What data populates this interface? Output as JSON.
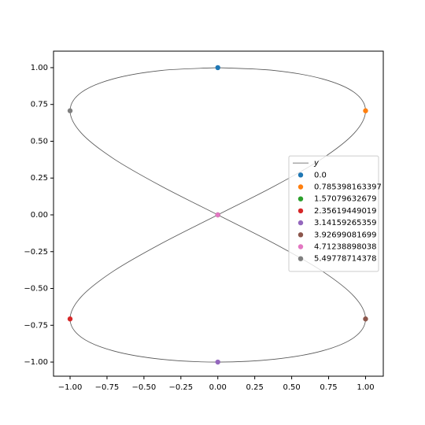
{
  "chart_data": {
    "type": "line",
    "xlim": [
      -1.112,
      1.12
    ],
    "ylim": [
      -1.096,
      1.112
    ],
    "xticks": [
      {
        "value": -1,
        "label": "−1.00"
      },
      {
        "value": -0.75,
        "label": "−0.75"
      },
      {
        "value": -0.5,
        "label": "−0.50"
      },
      {
        "value": -0.25,
        "label": "−0.25"
      },
      {
        "value": 0,
        "label": "0.00"
      },
      {
        "value": 0.25,
        "label": "0.25"
      },
      {
        "value": 0.5,
        "label": "0.50"
      },
      {
        "value": 0.75,
        "label": "0.75"
      },
      {
        "value": 1,
        "label": "1.00"
      }
    ],
    "yticks": [
      {
        "value": -1,
        "label": "−1.00"
      },
      {
        "value": -0.75,
        "label": "−0.75"
      },
      {
        "value": -0.5,
        "label": "−0.50"
      },
      {
        "value": -0.25,
        "label": "−0.25"
      },
      {
        "value": 0,
        "label": "0.00"
      },
      {
        "value": 0.25,
        "label": "0.25"
      },
      {
        "value": 0.5,
        "label": "0.50"
      },
      {
        "value": 0.75,
        "label": "0.75"
      },
      {
        "value": 1,
        "label": "1.00"
      }
    ],
    "legend": "center right",
    "series": [
      {
        "name": "y",
        "type": "line",
        "color": "#555555",
        "x": [
          0,
          0.3827,
          0.7071,
          0.9239,
          1,
          0.9239,
          0.7071,
          0.3827,
          0,
          -0.3827,
          -0.7071,
          -0.9239,
          -1,
          -0.9239,
          -0.7071,
          -0.3827,
          0,
          0.3827,
          0.7071,
          0.9239,
          1,
          0.9239,
          0.7071,
          0.3827,
          0,
          -0.3827,
          -0.7071,
          -0.9239,
          -1,
          -0.9239,
          -0.7071,
          -0.3827,
          0
        ],
        "y": [
          1,
          0.9808,
          0.9239,
          0.8315,
          0.7071,
          0.5556,
          0.3827,
          0.1951,
          0,
          -0.1951,
          -0.3827,
          -0.5556,
          -0.7071,
          -0.8315,
          -0.9239,
          -0.9808,
          -1,
          -0.9808,
          -0.9239,
          -0.8315,
          -0.7071,
          -0.5556,
          -0.3827,
          -0.1951,
          0,
          0.1951,
          0.3827,
          0.5556,
          0.7071,
          0.8315,
          0.9239,
          0.9808,
          1
        ]
      },
      {
        "name": "0.0",
        "type": "scatter",
        "color": "#1f77b4",
        "x": [
          0
        ],
        "y": [
          1
        ]
      },
      {
        "name": "0.785398163397",
        "type": "scatter",
        "color": "#ff7f0e",
        "x": [
          1
        ],
        "y": [
          0.7071
        ]
      },
      {
        "name": "1.57079632679",
        "type": "scatter",
        "color": "#2ca02c",
        "x": [
          0
        ],
        "y": [
          0
        ]
      },
      {
        "name": "2.35619449019",
        "type": "scatter",
        "color": "#d62728",
        "x": [
          -1
        ],
        "y": [
          -0.7071
        ]
      },
      {
        "name": "3.14159265359",
        "type": "scatter",
        "color": "#9467bd",
        "x": [
          0
        ],
        "y": [
          -1
        ]
      },
      {
        "name": "3.92699081699",
        "type": "scatter",
        "color": "#8c564b",
        "x": [
          1
        ],
        "y": [
          -0.7071
        ]
      },
      {
        "name": "4.71238898038",
        "type": "scatter",
        "color": "#e377c2",
        "x": [
          0
        ],
        "y": [
          0
        ]
      },
      {
        "name": "5.49778714378",
        "type": "scatter",
        "color": "#7f7f7f",
        "x": [
          -1
        ],
        "y": [
          0.7071
        ]
      }
    ]
  }
}
